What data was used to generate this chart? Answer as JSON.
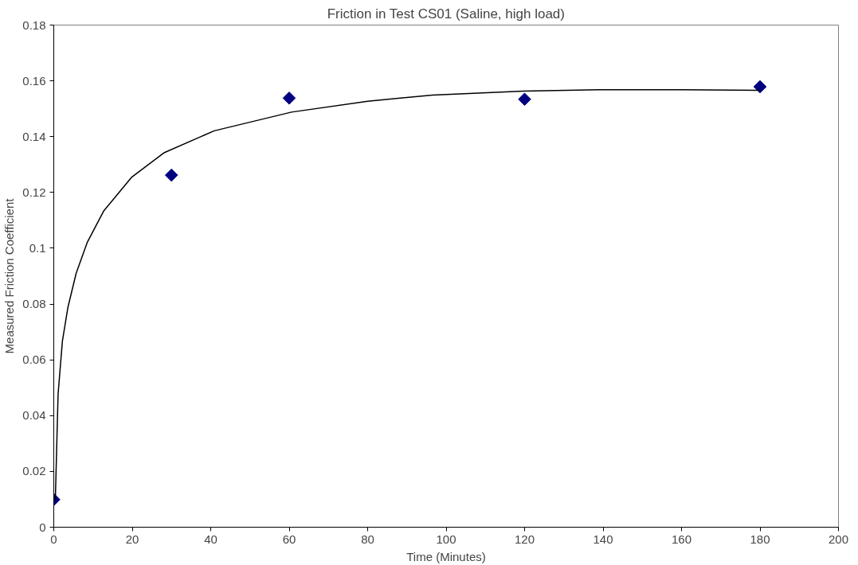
{
  "chart_data": {
    "type": "scatter",
    "title": "Friction in Test CS01 (Saline, high load)",
    "xlabel": "Time (Minutes)",
    "ylabel": "Measured Friction Coefficient",
    "xlim": [
      0,
      200
    ],
    "xticks": [
      0,
      20,
      40,
      60,
      80,
      100,
      120,
      140,
      160,
      180,
      200
    ],
    "ylim": [
      0,
      0.18
    ],
    "yticks": [
      0,
      0.02,
      0.04,
      0.06,
      0.08,
      0.1,
      0.12,
      0.14,
      0.16,
      0.18
    ],
    "grid": false,
    "series": [
      {
        "marker": "diamond",
        "color": "#000080",
        "x": [
          0,
          30,
          60,
          120,
          180
        ],
        "values": [
          0.0099,
          0.1262,
          0.1538,
          0.1534,
          0.1579
        ]
      },
      {
        "type": "line",
        "marker": "none",
        "line_style": "solid",
        "color": "#000000",
        "x": [
          0.4,
          1.1,
          2.2,
          3.6,
          5.7,
          8.5,
          12.7,
          19.8,
          28.2,
          40.9,
          60.6,
          80,
          96.5,
          119.7,
          138.8,
          160,
          180
        ],
        "values": [
          0.0099,
          0.0477,
          0.0667,
          0.0788,
          0.091,
          0.102,
          0.1133,
          0.1254,
          0.1343,
          0.1421,
          0.1488,
          0.1527,
          0.1549,
          0.1563,
          0.1568,
          0.1568,
          0.1566
        ]
      }
    ]
  }
}
